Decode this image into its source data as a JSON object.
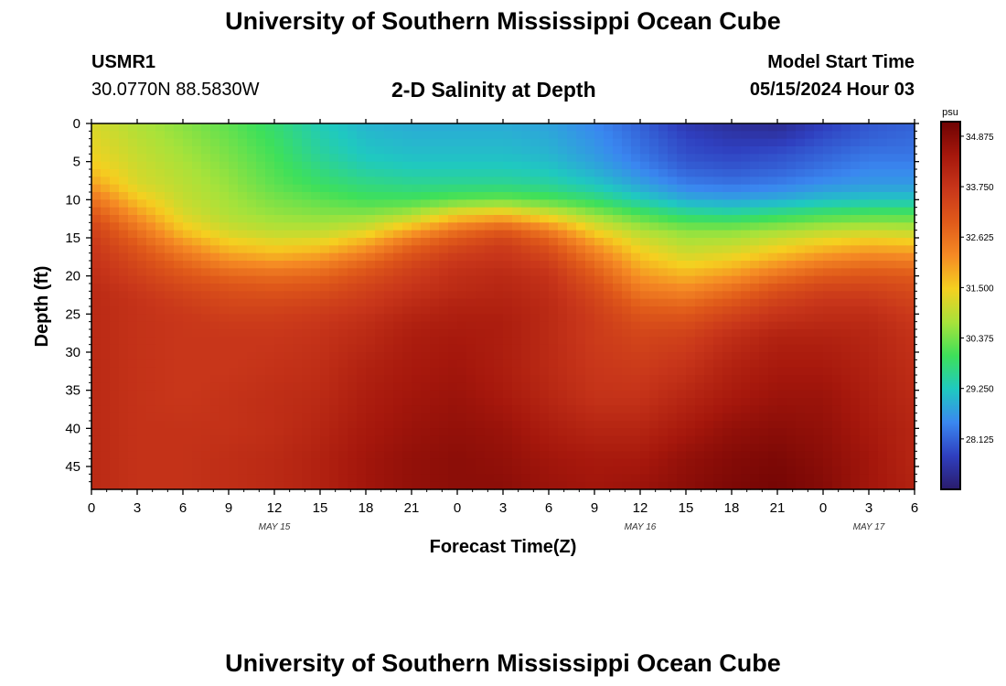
{
  "header": {
    "title": "University of Southern Mississippi Ocean Cube",
    "station_id": "USMR1",
    "coordinates": "30.0770N  88.5830W",
    "subtitle": "2-D Salinity at Depth",
    "model_start_label": "Model Start Time",
    "model_start_value": "05/15/2024 Hour 03"
  },
  "footer": {
    "title": "University of Southern Mississippi Ocean Cube"
  },
  "chart_data": {
    "type": "heatmap",
    "title": "2-D Salinity at Depth",
    "xlabel": "Forecast Time(Z)",
    "ylabel": "Depth (ft)",
    "x_ticks": [
      "0",
      "3",
      "6",
      "9",
      "12",
      "15",
      "18",
      "21",
      "0",
      "3",
      "6",
      "9",
      "12",
      "15",
      "18",
      "21",
      "0",
      "3",
      "6"
    ],
    "x_hours_range": [
      0,
      54
    ],
    "date_labels": [
      {
        "label": "MAY 15",
        "hour": 12
      },
      {
        "label": "MAY 16",
        "hour": 36
      },
      {
        "label": "MAY 17",
        "hour": 51
      }
    ],
    "y_ticks": [
      "0",
      "5",
      "10",
      "15",
      "20",
      "25",
      "30",
      "35",
      "40",
      "45"
    ],
    "ylim": [
      0,
      48
    ],
    "colorbar": {
      "unit": "psu",
      "min": 27.0,
      "max": 35.2,
      "labels": [
        "34.875",
        "33.750",
        "32.625",
        "31.500",
        "30.375",
        "29.250",
        "28.125"
      ],
      "colors": [
        "#2a1c6b",
        "#2f3fbf",
        "#3a87f0",
        "#1fc9c0",
        "#3ee05a",
        "#a8e23a",
        "#f5d020",
        "#f58a24",
        "#e05a1a",
        "#c8361a",
        "#a5170c",
        "#6e0303"
      ]
    },
    "depth_grid": [
      0,
      2,
      4,
      6,
      8,
      10,
      12,
      14,
      16,
      18,
      20,
      22,
      24,
      26,
      28,
      32,
      36,
      40,
      44,
      48
    ],
    "hour_grid": [
      0,
      3,
      6,
      9,
      12,
      15,
      18,
      21,
      24,
      27,
      30,
      33,
      36,
      39,
      42,
      45,
      48,
      51,
      54
    ],
    "salinity": [
      [
        31.2,
        30.8,
        30.5,
        30.2,
        29.8,
        29.3,
        29.0,
        28.9,
        28.9,
        28.9,
        28.8,
        28.5,
        28.1,
        27.6,
        27.4,
        27.3,
        27.7,
        28.0,
        28.1
      ],
      [
        31.3,
        30.9,
        30.6,
        30.3,
        29.9,
        29.4,
        29.1,
        29.0,
        29.0,
        29.0,
        28.9,
        28.6,
        28.2,
        27.8,
        27.6,
        27.6,
        27.9,
        28.1,
        28.2
      ],
      [
        31.4,
        31.0,
        30.7,
        30.4,
        30.0,
        29.5,
        29.2,
        29.1,
        29.1,
        29.1,
        29.0,
        28.7,
        28.3,
        27.9,
        27.8,
        27.9,
        28.1,
        28.3,
        28.3
      ],
      [
        31.6,
        31.1,
        30.8,
        30.5,
        30.1,
        29.7,
        29.4,
        29.3,
        29.3,
        29.3,
        29.2,
        28.9,
        28.5,
        28.1,
        28.0,
        28.1,
        28.3,
        28.5,
        28.5
      ],
      [
        32.0,
        31.2,
        30.9,
        30.6,
        30.2,
        29.9,
        29.7,
        29.6,
        29.6,
        29.6,
        29.5,
        29.2,
        28.8,
        28.4,
        28.3,
        28.4,
        28.6,
        28.7,
        28.7
      ],
      [
        32.6,
        31.6,
        31.0,
        30.7,
        30.4,
        30.2,
        30.0,
        30.0,
        30.2,
        30.3,
        30.1,
        29.8,
        29.3,
        28.9,
        28.8,
        28.9,
        29.1,
        29.2,
        29.2
      ],
      [
        33.1,
        32.1,
        31.2,
        30.8,
        30.6,
        30.5,
        30.5,
        30.8,
        31.5,
        31.7,
        31.2,
        30.6,
        30.1,
        29.7,
        29.6,
        29.8,
        30.0,
        30.1,
        30.1
      ],
      [
        33.5,
        32.6,
        31.6,
        31.1,
        30.9,
        30.9,
        31.2,
        31.9,
        32.6,
        33.0,
        32.4,
        31.4,
        30.8,
        30.5,
        30.5,
        30.7,
        30.9,
        31.0,
        30.9
      ],
      [
        33.7,
        33.0,
        32.2,
        31.6,
        31.4,
        31.5,
        32.0,
        32.8,
        33.3,
        33.6,
        33.1,
        32.1,
        31.3,
        30.9,
        31.0,
        31.3,
        31.6,
        31.8,
        31.7
      ],
      [
        33.8,
        33.3,
        32.7,
        32.2,
        32.0,
        32.2,
        32.7,
        33.3,
        33.7,
        33.8,
        33.5,
        32.6,
        31.7,
        31.3,
        31.5,
        31.9,
        32.3,
        32.5,
        32.4
      ],
      [
        33.9,
        33.5,
        33.1,
        32.8,
        32.7,
        32.8,
        33.2,
        33.6,
        33.9,
        34.0,
        33.8,
        33.0,
        32.1,
        31.8,
        32.1,
        32.6,
        33.0,
        33.1,
        33.0
      ],
      [
        34.0,
        33.7,
        33.4,
        33.2,
        33.1,
        33.2,
        33.5,
        33.8,
        34.0,
        34.1,
        33.9,
        33.3,
        32.5,
        32.3,
        32.7,
        33.2,
        33.5,
        33.5,
        33.3
      ],
      [
        34.0,
        33.8,
        33.6,
        33.4,
        33.4,
        33.5,
        33.7,
        34.0,
        34.2,
        34.2,
        34.0,
        33.5,
        32.9,
        32.8,
        33.2,
        33.6,
        33.8,
        33.8,
        33.5
      ],
      [
        34.0,
        33.8,
        33.7,
        33.6,
        33.6,
        33.7,
        33.9,
        34.2,
        34.3,
        34.3,
        34.0,
        33.6,
        33.2,
        33.2,
        33.6,
        33.9,
        34.0,
        34.0,
        33.7
      ],
      [
        34.0,
        33.8,
        33.7,
        33.7,
        33.7,
        33.8,
        34.0,
        34.3,
        34.4,
        34.3,
        34.0,
        33.6,
        33.4,
        33.5,
        33.9,
        34.2,
        34.2,
        34.1,
        33.8
      ],
      [
        34.0,
        33.8,
        33.7,
        33.7,
        33.8,
        33.9,
        34.2,
        34.4,
        34.5,
        34.3,
        34.0,
        33.7,
        33.6,
        33.8,
        34.2,
        34.4,
        34.4,
        34.2,
        33.9
      ],
      [
        34.0,
        33.8,
        33.7,
        33.8,
        33.9,
        34.0,
        34.3,
        34.5,
        34.6,
        34.4,
        34.1,
        33.8,
        33.8,
        34.1,
        34.4,
        34.6,
        34.6,
        34.3,
        34.0
      ],
      [
        34.0,
        33.8,
        33.8,
        33.8,
        33.9,
        34.1,
        34.4,
        34.6,
        34.7,
        34.6,
        34.3,
        34.1,
        34.1,
        34.4,
        34.7,
        34.8,
        34.7,
        34.4,
        34.1
      ],
      [
        34.0,
        33.8,
        33.8,
        33.9,
        34.0,
        34.2,
        34.5,
        34.7,
        34.8,
        34.7,
        34.5,
        34.4,
        34.4,
        34.7,
        34.9,
        35.0,
        34.8,
        34.5,
        34.1
      ],
      [
        34.0,
        33.8,
        33.8,
        33.9,
        34.0,
        34.2,
        34.5,
        34.7,
        34.8,
        34.8,
        34.6,
        34.5,
        34.6,
        34.8,
        35.0,
        35.1,
        34.9,
        34.5,
        34.2
      ]
    ]
  }
}
